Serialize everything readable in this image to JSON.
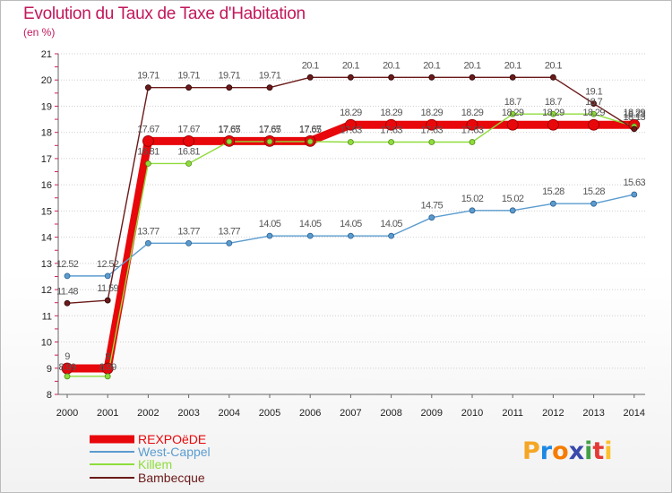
{
  "chart_data": {
    "type": "line",
    "title": "Evolution du Taux de Taxe d'Habitation",
    "subtitle": "(en %)",
    "xlabel": "",
    "ylabel": "",
    "categories": [
      "2000",
      "2001",
      "2002",
      "2003",
      "2004",
      "2005",
      "2006",
      "2007",
      "2008",
      "2009",
      "2010",
      "2011",
      "2012",
      "2013",
      "2014"
    ],
    "ylim": [
      8,
      21
    ],
    "yticks": [
      8,
      9,
      10,
      11,
      12,
      13,
      14,
      15,
      16,
      17,
      18,
      19,
      20,
      21
    ],
    "grid": "horizontal dotted",
    "legend_position": "bottom-left",
    "series": [
      {
        "name": "REXPOëDE",
        "color": "#e8070b",
        "values": [
          8.99,
          8.99,
          17.67,
          17.67,
          17.67,
          17.67,
          17.67,
          18.29,
          18.29,
          18.29,
          18.29,
          18.29,
          18.29,
          18.29,
          18.29
        ]
      },
      {
        "name": "West-Cappel",
        "color": "#5b9ccf",
        "values": [
          12.52,
          12.52,
          13.77,
          13.77,
          13.77,
          14.05,
          14.05,
          14.05,
          14.05,
          14.75,
          15.02,
          15.02,
          15.28,
          15.28,
          15.63
        ]
      },
      {
        "name": "Killem",
        "color": "#8fdc3c",
        "values": [
          8.69,
          8.69,
          16.81,
          16.81,
          17.65,
          17.65,
          17.65,
          17.63,
          17.63,
          17.63,
          17.63,
          18.7,
          18.7,
          18.7,
          18.23
        ]
      },
      {
        "name": "Bambecque",
        "color": "#6b1a1a",
        "values": [
          11.48,
          11.59,
          19.71,
          19.71,
          19.71,
          19.71,
          20.1,
          20.1,
          20.1,
          20.1,
          20.1,
          20.1,
          20.1,
          19.1,
          18.13
        ]
      }
    ],
    "data_labels": [
      {
        "text": "9",
        "x": "2000",
        "series": "REXPOëDE",
        "value": 9
      },
      {
        "text": "8.99",
        "x": "2000",
        "series": "REXPOëDE",
        "value": 8.99
      },
      {
        "text": "9",
        "x": "2001",
        "series": "REXPOëDE",
        "value": 9
      },
      {
        "text": "8.99",
        "x": "2001",
        "series": "REXPOëDE",
        "value": 8.99
      },
      {
        "text": "17.67",
        "x": "2002",
        "series": "REXPOëDE",
        "value": 17.67
      },
      {
        "text": "17.67",
        "x": "2003",
        "series": "REXPOëDE",
        "value": 17.67
      },
      {
        "text": "17.67",
        "x": "2004",
        "series": "REXPOëDE",
        "value": 17.67
      },
      {
        "text": "17.67",
        "x": "2005",
        "series": "REXPOëDE",
        "value": 17.67
      },
      {
        "text": "17.67",
        "x": "2006",
        "series": "REXPOëDE",
        "value": 17.67
      },
      {
        "text": "18.29",
        "x": "2007",
        "series": "REXPOëDE",
        "value": 18.29
      },
      {
        "text": "18.29",
        "x": "2008",
        "series": "REXPOëDE",
        "value": 18.29
      },
      {
        "text": "18.29",
        "x": "2009",
        "series": "REXPOëDE",
        "value": 18.29
      },
      {
        "text": "18.29",
        "x": "2010",
        "series": "REXPOëDE",
        "value": 18.29
      },
      {
        "text": "18.29",
        "x": "2011",
        "series": "REXPOëDE",
        "value": 18.29
      },
      {
        "text": "18.29",
        "x": "2012",
        "series": "REXPOëDE",
        "value": 18.29
      },
      {
        "text": "18.29",
        "x": "2013",
        "series": "REXPOëDE",
        "value": 18.29
      },
      {
        "text": "18.29",
        "x": "2014",
        "series": "REXPOëDE",
        "value": 18.29
      },
      {
        "text": "12.52",
        "x": "2000",
        "series": "West-Cappel",
        "value": 12.52
      },
      {
        "text": "12.52",
        "x": "2001",
        "series": "West-Cappel",
        "value": 12.52
      },
      {
        "text": "13.77",
        "x": "2002",
        "series": "West-Cappel",
        "value": 13.77
      },
      {
        "text": "13.77",
        "x": "2003",
        "series": "West-Cappel",
        "value": 13.77
      },
      {
        "text": "13.77",
        "x": "2004",
        "series": "West-Cappel",
        "value": 13.77
      },
      {
        "text": "14.05",
        "x": "2005",
        "series": "West-Cappel",
        "value": 14.05
      },
      {
        "text": "14.05",
        "x": "2006",
        "series": "West-Cappel",
        "value": 14.05
      },
      {
        "text": "14.05",
        "x": "2007",
        "series": "West-Cappel",
        "value": 14.05
      },
      {
        "text": "14.05",
        "x": "2008",
        "series": "West-Cappel",
        "value": 14.05
      },
      {
        "text": "14.75",
        "x": "2009",
        "series": "West-Cappel",
        "value": 14.75
      },
      {
        "text": "15.02",
        "x": "2010",
        "series": "West-Cappel",
        "value": 15.02
      },
      {
        "text": "15.02",
        "x": "2011",
        "series": "West-Cappel",
        "value": 15.02
      },
      {
        "text": "15.28",
        "x": "2012",
        "series": "West-Cappel",
        "value": 15.28
      },
      {
        "text": "15.28",
        "x": "2013",
        "series": "West-Cappel",
        "value": 15.28
      },
      {
        "text": "15.63",
        "x": "2014",
        "series": "West-Cappel",
        "value": 15.63
      },
      {
        "text": "16.81",
        "x": "2002",
        "series": "Killem",
        "value": 16.81
      },
      {
        "text": "16.81",
        "x": "2003",
        "series": "Killem",
        "value": 16.81
      },
      {
        "text": "17.65",
        "x": "2004",
        "series": "Killem",
        "value": 17.65
      },
      {
        "text": "17.65",
        "x": "2005",
        "series": "Killem",
        "value": 17.65
      },
      {
        "text": "17.65",
        "x": "2006",
        "series": "Killem",
        "value": 17.65
      },
      {
        "text": "17.63",
        "x": "2007",
        "series": "Killem",
        "value": 17.63
      },
      {
        "text": "17.63",
        "x": "2008",
        "series": "Killem",
        "value": 17.63
      },
      {
        "text": "17.63",
        "x": "2009",
        "series": "Killem",
        "value": 17.63
      },
      {
        "text": "17.63",
        "x": "2010",
        "series": "Killem",
        "value": 17.63
      },
      {
        "text": "18.7",
        "x": "2011",
        "series": "Killem",
        "value": 18.7
      },
      {
        "text": "18.7",
        "x": "2012",
        "series": "Killem",
        "value": 18.7
      },
      {
        "text": "18.7",
        "x": "2013",
        "series": "Killem",
        "value": 18.7
      },
      {
        "text": "18.23",
        "x": "2014",
        "series": "Killem",
        "value": 18.23
      },
      {
        "text": "11.48",
        "x": "2000",
        "series": "Bambecque",
        "value": 11.48
      },
      {
        "text": "11.59",
        "x": "2001",
        "series": "Bambecque",
        "value": 11.59
      },
      {
        "text": "19.71",
        "x": "2002",
        "series": "Bambecque",
        "value": 19.71
      },
      {
        "text": "19.71",
        "x": "2003",
        "series": "Bambecque",
        "value": 19.71
      },
      {
        "text": "19.71",
        "x": "2004",
        "series": "Bambecque",
        "value": 19.71
      },
      {
        "text": "19.71",
        "x": "2005",
        "series": "Bambecque",
        "value": 19.71
      },
      {
        "text": "20.1",
        "x": "2006",
        "series": "Bambecque",
        "value": 20.1
      },
      {
        "text": "20.1",
        "x": "2007",
        "series": "Bambecque",
        "value": 20.1
      },
      {
        "text": "20.1",
        "x": "2008",
        "series": "Bambecque",
        "value": 20.1
      },
      {
        "text": "20.1",
        "x": "2009",
        "series": "Bambecque",
        "value": 20.1
      },
      {
        "text": "20.1",
        "x": "2010",
        "series": "Bambecque",
        "value": 20.1
      },
      {
        "text": "20.1",
        "x": "2011",
        "series": "Bambecque",
        "value": 20.1
      },
      {
        "text": "20.1",
        "x": "2012",
        "series": "Bambecque",
        "value": 20.1
      },
      {
        "text": "19.1",
        "x": "2013",
        "series": "Bambecque",
        "value": 19.1
      },
      {
        "text": "18.13",
        "x": "2014",
        "series": "Bambecque",
        "value": 18.13
      }
    ]
  },
  "logo": {
    "text": "Proxiti",
    "letters": [
      "P",
      "r",
      "o",
      "x",
      "i",
      "t",
      "i"
    ],
    "colors": [
      "#f5a623",
      "#1e88e5",
      "#f57c00",
      "#3949ab",
      "#43a047",
      "#e53935",
      "#fbc02d"
    ]
  }
}
